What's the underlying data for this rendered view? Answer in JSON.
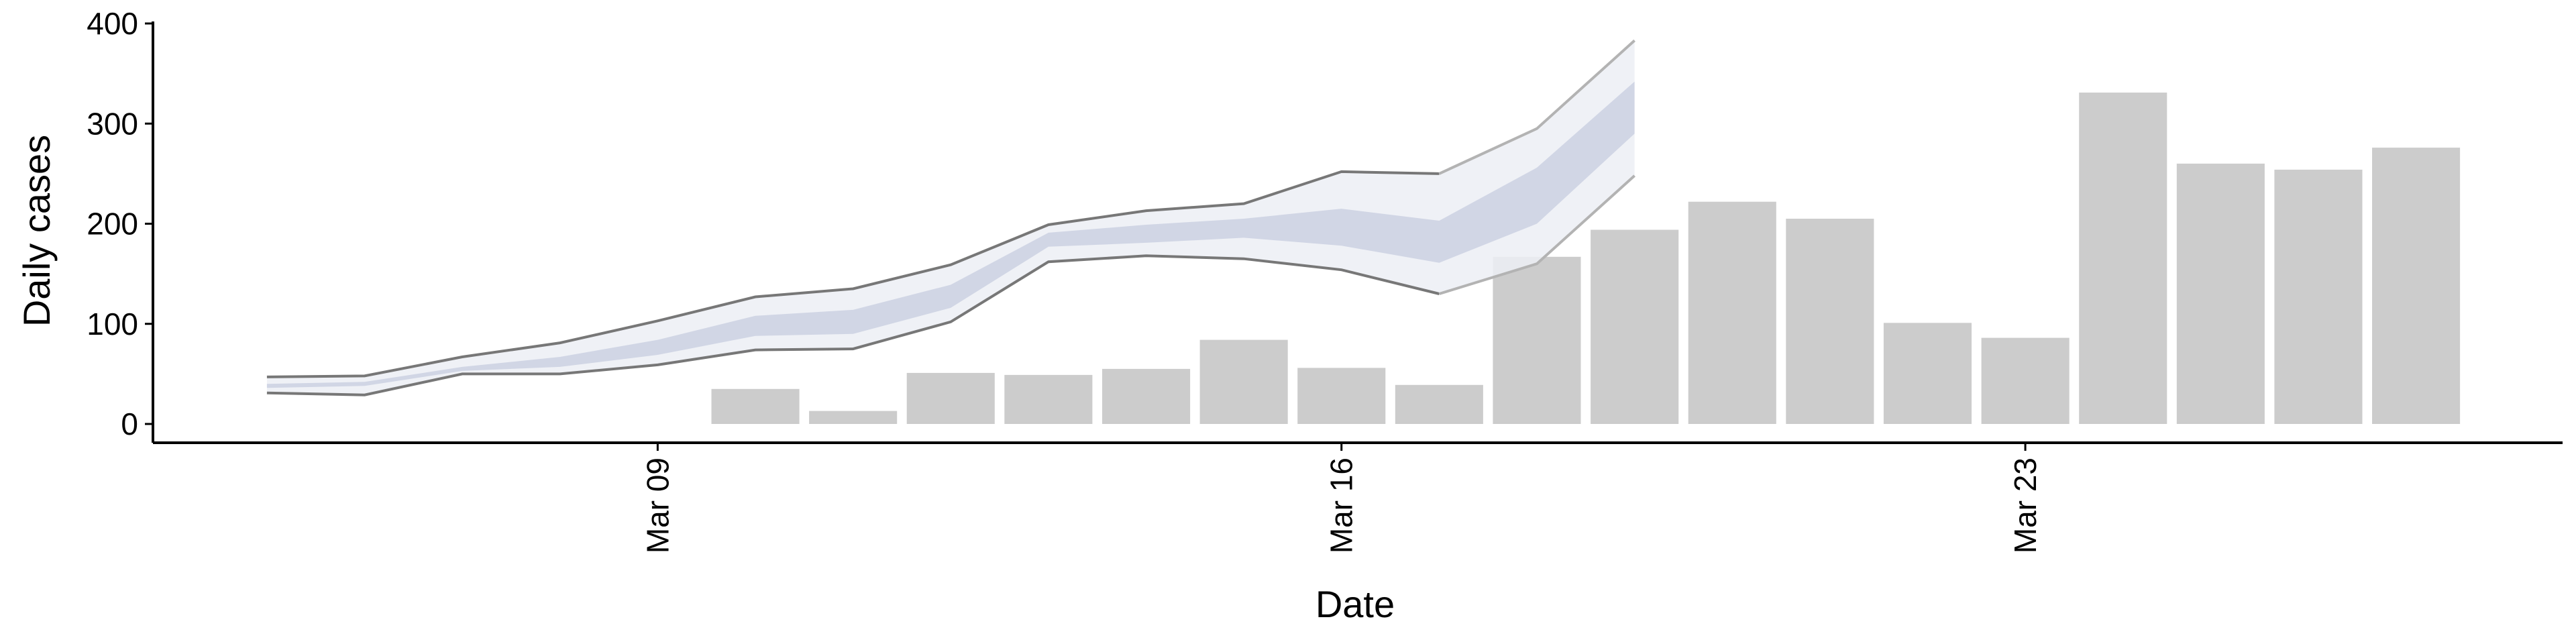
{
  "chart_data": {
    "type": "bar",
    "xlabel": "Date",
    "ylabel": "Daily cases",
    "ylim": [
      0,
      400
    ],
    "yticks": [
      0,
      100,
      200,
      300,
      400
    ],
    "xticks": [
      "2020-03-09",
      "2020-03-16",
      "2020-03-23"
    ],
    "xtick_labels": [
      "Mar 09",
      "Mar 16",
      "Mar 23"
    ],
    "xlim": [
      "2020-03-03T20:00",
      "2020-03-28T12:00"
    ],
    "grid": false,
    "bars": {
      "x": [
        "2020-03-10",
        "2020-03-11",
        "2020-03-12",
        "2020-03-13",
        "2020-03-14",
        "2020-03-15",
        "2020-03-16",
        "2020-03-17",
        "2020-03-18",
        "2020-03-19",
        "2020-03-20",
        "2020-03-21",
        "2020-03-22",
        "2020-03-23",
        "2020-03-24",
        "2020-03-25",
        "2020-03-26",
        "2020-03-27"
      ],
      "values": [
        35,
        13,
        51,
        49,
        55,
        84,
        56,
        39,
        167,
        194,
        222,
        205,
        101,
        86,
        331,
        260,
        254,
        276
      ],
      "color": "#cccccc"
    },
    "forecast": {
      "x": [
        "2020-03-05",
        "2020-03-06",
        "2020-03-07",
        "2020-03-08",
        "2020-03-09",
        "2020-03-10",
        "2020-03-11",
        "2020-03-12",
        "2020-03-13",
        "2020-03-14",
        "2020-03-15",
        "2020-03-16",
        "2020-03-17",
        "2020-03-18",
        "2020-03-19"
      ],
      "outer_upper": [
        47,
        48,
        67,
        81,
        103,
        127,
        135,
        159,
        199,
        213,
        220,
        252,
        250,
        295,
        383
      ],
      "outer_lower": [
        31,
        29,
        50,
        50,
        59,
        74,
        75,
        102,
        162,
        168,
        165,
        154,
        130,
        160,
        248
      ],
      "inner_upper": [
        40,
        42,
        57,
        67,
        84,
        108,
        114,
        139,
        191,
        199,
        205,
        215,
        203,
        256,
        342
      ],
      "inner_lower": [
        36,
        38,
        53,
        57,
        69,
        88,
        90,
        116,
        177,
        181,
        186,
        178,
        161,
        200,
        290
      ],
      "observed_through": "2020-03-17",
      "outer_color": "#eceef4",
      "inner_color": "#cdd3e3",
      "line_color": "#777777",
      "line_color_projected": "#b3b3b3"
    }
  }
}
